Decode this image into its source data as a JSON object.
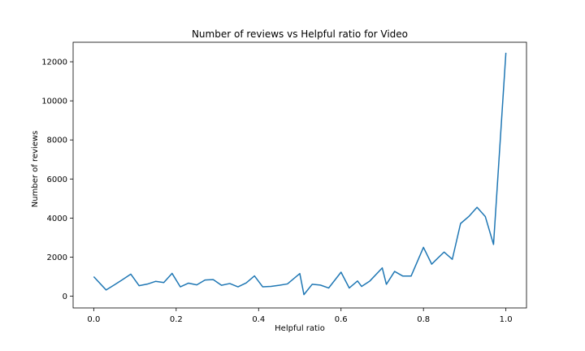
{
  "chart_data": {
    "type": "line",
    "title": "Number of reviews vs Helpful ratio for Video",
    "xlabel": "Helpful ratio",
    "ylabel": "Number of reviews",
    "xlim": [
      -0.05,
      1.05
    ],
    "ylim": [
      -600,
      13000
    ],
    "xticks": [
      0.0,
      0.2,
      0.4,
      0.6,
      0.8,
      1.0
    ],
    "xtick_labels": [
      "0.0",
      "0.2",
      "0.4",
      "0.6",
      "0.8",
      "1.0"
    ],
    "yticks": [
      0,
      2000,
      4000,
      6000,
      8000,
      10000,
      12000
    ],
    "ytick_labels": [
      "0",
      "2000",
      "4000",
      "6000",
      "8000",
      "10000",
      "12000"
    ],
    "grid": false,
    "line_color": "#1f77b4",
    "series": [
      {
        "x": [
          0.0,
          0.03,
          0.05,
          0.07,
          0.09,
          0.11,
          0.13,
          0.15,
          0.17,
          0.19,
          0.21,
          0.23,
          0.25,
          0.27,
          0.29,
          0.31,
          0.33,
          0.35,
          0.37,
          0.39,
          0.41,
          0.43,
          0.45,
          0.47,
          0.5,
          0.51,
          0.53,
          0.55,
          0.57,
          0.6,
          0.62,
          0.64,
          0.65,
          0.67,
          0.7,
          0.71,
          0.73,
          0.75,
          0.77,
          0.8,
          0.82,
          0.83,
          0.85,
          0.87,
          0.89,
          0.91,
          0.93,
          0.95,
          0.97,
          1.0
        ],
        "y": [
          1000,
          320,
          580,
          850,
          1130,
          540,
          620,
          760,
          700,
          1170,
          480,
          670,
          580,
          830,
          850,
          560,
          650,
          480,
          680,
          1040,
          480,
          500,
          560,
          630,
          1160,
          80,
          610,
          570,
          420,
          1230,
          420,
          780,
          500,
          780,
          1450,
          610,
          1270,
          1030,
          1030,
          2500,
          1640,
          1850,
          2260,
          1890,
          3720,
          4080,
          4550,
          4080,
          2650,
          12460
        ]
      }
    ]
  }
}
